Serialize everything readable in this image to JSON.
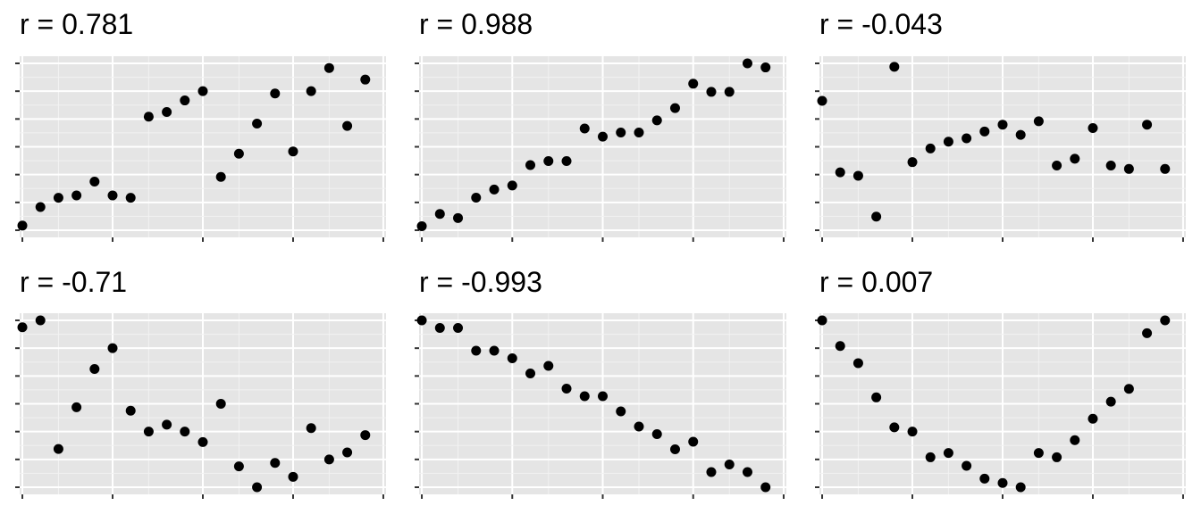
{
  "chart_data": [
    {
      "type": "scatter",
      "title": "r =  0.781",
      "x": [
        1,
        2,
        3,
        4,
        5,
        6,
        7,
        8,
        9,
        10,
        11,
        12,
        13,
        14,
        15,
        16,
        17,
        18,
        19,
        20
      ],
      "y": [
        0.2,
        1.0,
        1.4,
        1.5,
        2.1,
        1.5,
        1.4,
        4.9,
        5.1,
        5.6,
        6.0,
        2.3,
        3.3,
        4.6,
        5.9,
        3.4,
        6.0,
        7.0,
        4.5,
        6.5
      ],
      "xlim": [
        0.85,
        21.15
      ],
      "ylim": [
        0,
        7.2
      ],
      "grid": true
    },
    {
      "type": "scatter",
      "title": "r =  0.988",
      "x": [
        1,
        2,
        3,
        4,
        5,
        6,
        7,
        8,
        9,
        10,
        11,
        12,
        13,
        14,
        15,
        16,
        17,
        18,
        19,
        20
      ],
      "y": [
        0.1,
        0.4,
        0.3,
        0.8,
        1.0,
        1.1,
        1.6,
        1.7,
        1.7,
        2.5,
        2.3,
        2.4,
        2.4,
        2.7,
        3.0,
        3.6,
        3.4,
        3.4,
        4.1,
        4.0
      ],
      "xlim": [
        0.85,
        21.15
      ],
      "ylim": [
        0,
        4.1
      ],
      "grid": true
    },
    {
      "type": "scatter",
      "title": "r =  -0.043",
      "x": [
        1,
        2,
        3,
        4,
        5,
        6,
        7,
        8,
        9,
        10,
        11,
        12,
        13,
        14,
        15,
        16,
        17,
        18,
        19,
        20
      ],
      "y": [
        2.9,
        0.8,
        0.7,
        -0.5,
        3.9,
        1.1,
        1.5,
        1.7,
        1.8,
        2.0,
        2.2,
        1.9,
        2.3,
        1.0,
        1.2,
        2.1,
        1.0,
        0.9,
        2.2,
        0.9
      ],
      "xlim": [
        0.85,
        21.15
      ],
      "ylim": [
        -0.9,
        4.0
      ],
      "grid": true
    },
    {
      "type": "scatter",
      "title": "r =  -0.71",
      "x": [
        1,
        2,
        3,
        4,
        5,
        6,
        7,
        8,
        9,
        10,
        11,
        12,
        13,
        14,
        15,
        16,
        17,
        18,
        19,
        20
      ],
      "y": [
        4.5,
        4.7,
        1.0,
        2.2,
        3.3,
        3.9,
        2.1,
        1.5,
        1.7,
        1.5,
        1.2,
        2.3,
        0.5,
        -0.1,
        0.6,
        0.2,
        1.6,
        0.7,
        0.9,
        1.4
      ],
      "xlim": [
        0.85,
        21.15
      ],
      "ylim": [
        -0.1,
        4.7
      ],
      "grid": true
    },
    {
      "type": "scatter",
      "title": "r =  -0.993",
      "x": [
        1,
        2,
        3,
        4,
        5,
        6,
        7,
        8,
        9,
        10,
        11,
        12,
        13,
        14,
        15,
        16,
        17,
        18,
        19,
        20
      ],
      "y": [
        3.9,
        3.8,
        3.8,
        3.5,
        3.5,
        3.4,
        3.2,
        3.3,
        3.0,
        2.9,
        2.9,
        2.7,
        2.5,
        2.4,
        2.2,
        2.3,
        1.9,
        2.0,
        1.9,
        1.7
      ],
      "xlim": [
        0.85,
        21.15
      ],
      "ylim": [
        1.7,
        3.9
      ],
      "grid": true
    },
    {
      "type": "scatter",
      "title": "r =  0.007",
      "x": [
        1,
        2,
        3,
        4,
        5,
        6,
        7,
        8,
        9,
        10,
        11,
        12,
        13,
        14,
        15,
        16,
        17,
        18,
        19,
        20
      ],
      "y": [
        3.7,
        3.1,
        2.7,
        1.9,
        1.2,
        1.1,
        0.5,
        0.6,
        0.3,
        0.0,
        -0.1,
        -0.2,
        0.6,
        0.5,
        0.9,
        1.4,
        1.8,
        2.1,
        3.4,
        3.7
      ],
      "xlim": [
        0.85,
        21.15
      ],
      "ylim": [
        -0.2,
        3.7
      ],
      "grid": true
    }
  ]
}
